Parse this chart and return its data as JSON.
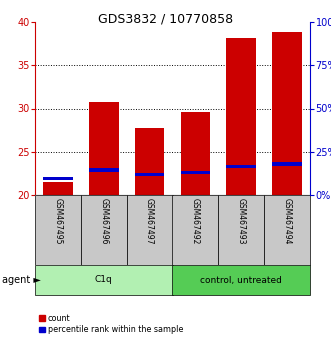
{
  "title": "GDS3832 / 10770858",
  "samples": [
    "GSM467495",
    "GSM467496",
    "GSM467497",
    "GSM467492",
    "GSM467493",
    "GSM467494"
  ],
  "groups": [
    "C1q",
    "C1q",
    "C1q",
    "control, untreated",
    "control, untreated",
    "control, untreated"
  ],
  "count_values": [
    21.5,
    30.7,
    27.7,
    29.6,
    38.2,
    38.8
  ],
  "percentile_values": [
    21.9,
    22.9,
    22.4,
    22.6,
    23.3,
    23.6
  ],
  "bar_bottom": 20.0,
  "ylim_left": [
    20,
    40
  ],
  "ylim_right": [
    0,
    100
  ],
  "yticks_left": [
    20,
    25,
    30,
    35,
    40
  ],
  "yticks_right": [
    0,
    25,
    50,
    75,
    100
  ],
  "yticklabels_right": [
    "0%",
    "25%",
    "50%",
    "75%",
    "100%"
  ],
  "red_color": "#cc0000",
  "blue_color": "#0000cc",
  "bar_width": 0.65,
  "label_bg": "#c8c8c8",
  "group_spans": [
    [
      0,
      2,
      "C1q",
      "#b2f0b2"
    ],
    [
      3,
      5,
      "control, untreated",
      "#55cc55"
    ]
  ],
  "legend_count": "count",
  "legend_percentile": "percentile rank within the sample",
  "agent_label": "agent ►",
  "title_fontsize": 9,
  "tick_fontsize": 7,
  "grid_yticks": [
    25,
    30,
    35
  ]
}
